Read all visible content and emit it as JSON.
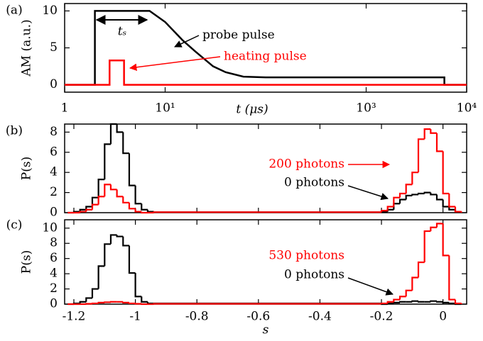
{
  "chart_data": [
    {
      "type": "line",
      "panel_label": "(a)",
      "y_label": "AM (a.u.)",
      "x_label": "t (μs)",
      "xscale": "log",
      "xlim": [
        1,
        10000
      ],
      "xticks": [
        1,
        {
          "value": 10,
          "label": "10¹"
        },
        {
          "value": 1000,
          "label": "10³"
        },
        {
          "value": 10000,
          "label": "10⁴"
        }
      ],
      "ylim": [
        -1,
        11
      ],
      "yticks": [
        0,
        5,
        10
      ],
      "annotations": [
        "tₛ"
      ],
      "series": [
        {
          "name": "probe pulse",
          "color": "#000000",
          "x": [
            1,
            2,
            2,
            7,
            10,
            15,
            20,
            30,
            40,
            60,
            100,
            6000,
            6000,
            10000
          ],
          "values": [
            0,
            0,
            10,
            10,
            8.5,
            6,
            4.5,
            2.5,
            1.7,
            1.1,
            1,
            1,
            0,
            0
          ]
        },
        {
          "name": "heating pulse",
          "color": "#ff0000",
          "x": [
            1,
            2.8,
            2.8,
            3.9,
            3.9,
            10000
          ],
          "values": [
            0,
            0,
            3.3,
            3.3,
            0,
            0
          ]
        }
      ]
    },
    {
      "type": "histogram",
      "panel_label": "(b)",
      "y_label": "P(s)",
      "xlim": [
        -1.23,
        0.077
      ],
      "xticks": [
        -1.2,
        -1,
        -0.8,
        -0.6,
        -0.4,
        -0.2,
        0
      ],
      "ylim": [
        0,
        8.8
      ],
      "yticks": [
        0,
        2,
        4,
        6,
        8
      ],
      "bins": [
        -1.22,
        -1.2,
        -1.18,
        -1.16,
        -1.14,
        -1.12,
        -1.1,
        -1.08,
        -1.06,
        -1.04,
        -1.02,
        -1,
        -0.98,
        -0.96,
        -0.94,
        -0.2,
        -0.18,
        -0.16,
        -0.14,
        -0.12,
        -0.1,
        -0.08,
        -0.06,
        -0.04,
        -0.02,
        0,
        0.02,
        0.04,
        0.06
      ],
      "series": [
        {
          "name": "0 photons",
          "color": "#000000",
          "values": [
            0,
            0.1,
            0.3,
            0.6,
            1.5,
            3.3,
            6.8,
            8.8,
            8.0,
            5.9,
            2.7,
            0.9,
            0.3,
            0.1,
            0.05,
            0.1,
            0.3,
            0.9,
            1.3,
            1.7,
            1.8,
            1.9,
            2.0,
            1.8,
            1.3,
            0.6,
            0.3,
            0.1
          ]
        },
        {
          "name": "200 photons",
          "color": "#ff0000",
          "values": [
            0,
            0,
            0.1,
            0.3,
            0.8,
            1.6,
            2.8,
            2.3,
            1.6,
            1.0,
            0.4,
            0.1,
            0,
            0,
            0.05,
            0.2,
            0.6,
            1.5,
            1.9,
            2.8,
            4.0,
            7.3,
            8.3,
            7.9,
            6.1,
            1.9,
            0.6,
            0.1
          ]
        }
      ]
    },
    {
      "type": "histogram",
      "panel_label": "(c)",
      "y_label": "P(s)",
      "x_label": "s",
      "xlim": [
        -1.23,
        0.077
      ],
      "xticks": [
        -1.2,
        -1,
        -0.8,
        -0.6,
        -0.4,
        -0.2,
        0
      ],
      "ylim": [
        0,
        11.1
      ],
      "yticks": [
        0,
        2,
        4,
        6,
        8,
        10
      ],
      "bins": [
        -1.22,
        -1.2,
        -1.18,
        -1.16,
        -1.14,
        -1.12,
        -1.1,
        -1.08,
        -1.06,
        -1.04,
        -1.02,
        -1,
        -0.98,
        -0.96,
        -0.94,
        -0.2,
        -0.18,
        -0.16,
        -0.14,
        -0.12,
        -0.1,
        -0.08,
        -0.06,
        -0.04,
        -0.02,
        0,
        0.02,
        0.04,
        0.06
      ],
      "series": [
        {
          "name": "0 photons",
          "color": "#000000",
          "values": [
            0,
            0.1,
            0.3,
            0.8,
            2.0,
            5.0,
            7.9,
            9.1,
            8.9,
            7.7,
            4.1,
            1.0,
            0.3,
            0.1,
            0.1,
            0,
            0.1,
            0.2,
            0.3,
            0.3,
            0.4,
            0.3,
            0.3,
            0.4,
            0.3,
            0.2,
            0.1,
            0
          ]
        },
        {
          "name": "530 photons",
          "color": "#ff0000",
          "values": [
            0,
            0,
            0,
            0.05,
            0.1,
            0.2,
            0.25,
            0.3,
            0.3,
            0.2,
            0.1,
            0.05,
            0,
            0,
            0.05,
            0.1,
            0.3,
            0.6,
            1.0,
            1.8,
            3.5,
            5.5,
            9.6,
            10.1,
            10.6,
            6.4,
            0.6,
            0.1
          ]
        }
      ]
    }
  ]
}
